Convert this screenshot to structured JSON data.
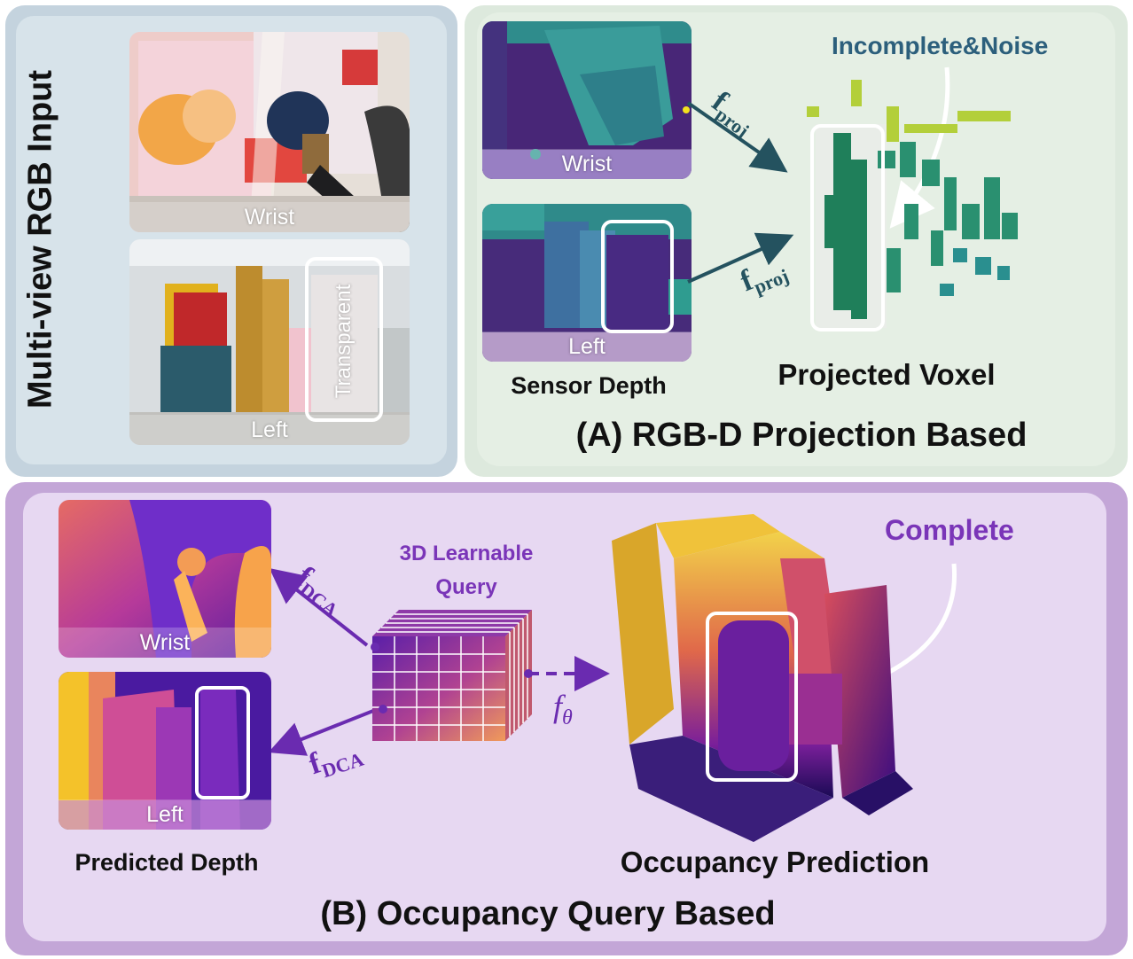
{
  "multiview": {
    "title": "Multi-view RGB Input",
    "wrist_label": "Wrist",
    "left_label": "Left",
    "transparent_label": "Transparent"
  },
  "section_a": {
    "title": "(A) RGB-D Projection Based",
    "sensor_depth_label": "Sensor Depth",
    "wrist_label": "Wrist",
    "left_label": "Left",
    "f_symbol": "f",
    "proj_subscript": "proj",
    "projected_voxel_label": "Projected Voxel",
    "annotation": "Incomplete&Noise"
  },
  "section_b": {
    "title": "(B) Occupancy Query Based",
    "predicted_depth_label": "Predicted Depth",
    "wrist_label": "Wrist",
    "left_label": "Left",
    "query_label_line1": "3D Learnable",
    "query_label_line2": "Query",
    "f_symbol": "f",
    "dca_subscript": "DCA",
    "theta_symbol": "f",
    "theta_subscript": "θ",
    "occupancy_label": "Occupancy Prediction",
    "annotation": "Complete"
  },
  "colors": {
    "teal_text": "#2c5f7c",
    "arrow_teal": "#24525f",
    "purple_text": "#7a35b8",
    "arrow_purple": "#6a2bb0"
  }
}
